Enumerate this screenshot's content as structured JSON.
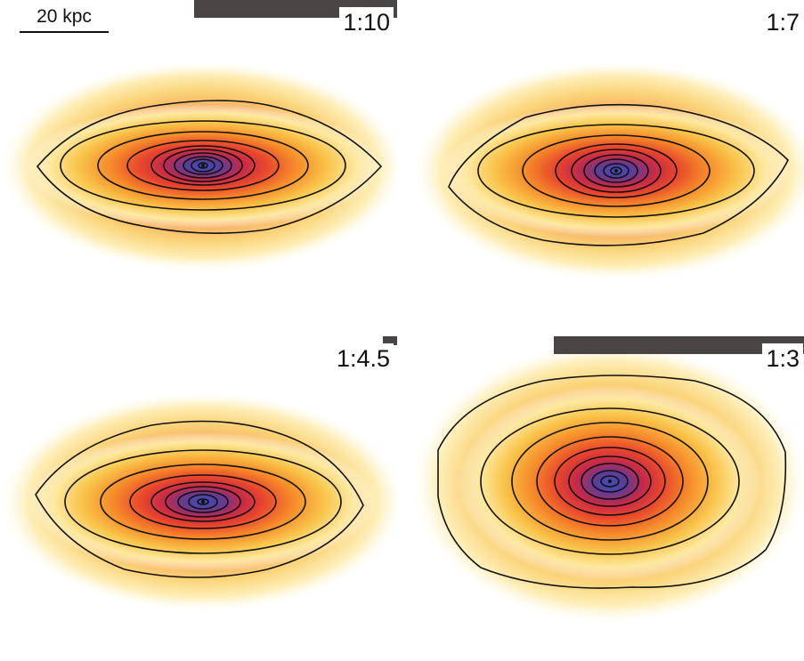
{
  "scale_bar": {
    "label": "20 kpc"
  },
  "panels": [
    {
      "ratio": "1:10"
    },
    {
      "ratio": "1:7"
    },
    {
      "ratio": "1:4.5"
    },
    {
      "ratio": "1:3"
    }
  ],
  "colors": {
    "outer": "#fff0b0",
    "mid": "#f8b02c",
    "inner": "#e03a2c",
    "core": "#5a3d9a",
    "center": "#3f4fb5",
    "contour": "#111111"
  }
}
